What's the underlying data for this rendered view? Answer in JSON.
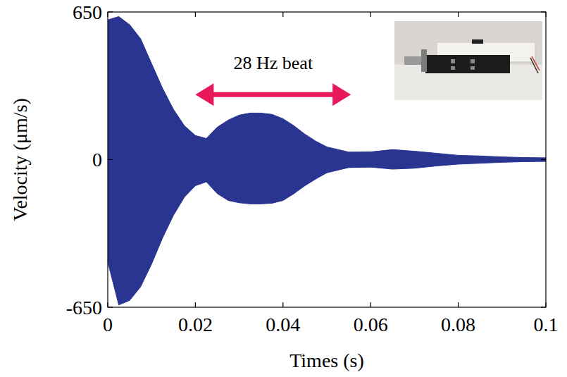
{
  "chart_data": {
    "type": "area",
    "x_label": "Times (s)",
    "y_label": "Velocity (μm/s)",
    "x": [
      0,
      0.0025,
      0.005,
      0.0075,
      0.01,
      0.0125,
      0.015,
      0.0175,
      0.02,
      0.0225,
      0.025,
      0.0275,
      0.03,
      0.0325,
      0.035,
      0.0375,
      0.04,
      0.0425,
      0.045,
      0.0475,
      0.05,
      0.055,
      0.06,
      0.065,
      0.07,
      0.075,
      0.08,
      0.085,
      0.09,
      0.095,
      0.1
    ],
    "series": [
      {
        "color": "#2a3592",
        "values": [
          615,
          630,
          594,
          532,
          423,
          314,
          221,
          149,
          106,
          93,
          143,
          174,
          196,
          205,
          205,
          199,
          180,
          149,
          112,
          81,
          56,
          33,
          34,
          44,
          37,
          28,
          19,
          16,
          12,
          9,
          8
        ]
      },
      {
        "color": "#2a3592",
        "values": [
          -450,
          -640,
          -620,
          -560,
          -460,
          -345,
          -245,
          -165,
          -115,
          -98,
          -150,
          -180,
          -190,
          -195,
          -195,
          -192,
          -180,
          -150,
          -115,
          -85,
          -58,
          -35,
          -33,
          -42,
          -38,
          -28,
          -20,
          -16,
          -12,
          -9,
          -8
        ]
      }
    ],
    "xlim": [
      0,
      0.1
    ],
    "ylim": [
      -650,
      650
    ],
    "xticks": [
      0,
      0.02,
      0.04,
      0.06,
      0.08,
      0.1
    ],
    "yticks": [
      -650,
      0,
      650
    ],
    "grid": false,
    "annotations": [
      {
        "text": "28 Hz beat"
      }
    ]
  }
}
